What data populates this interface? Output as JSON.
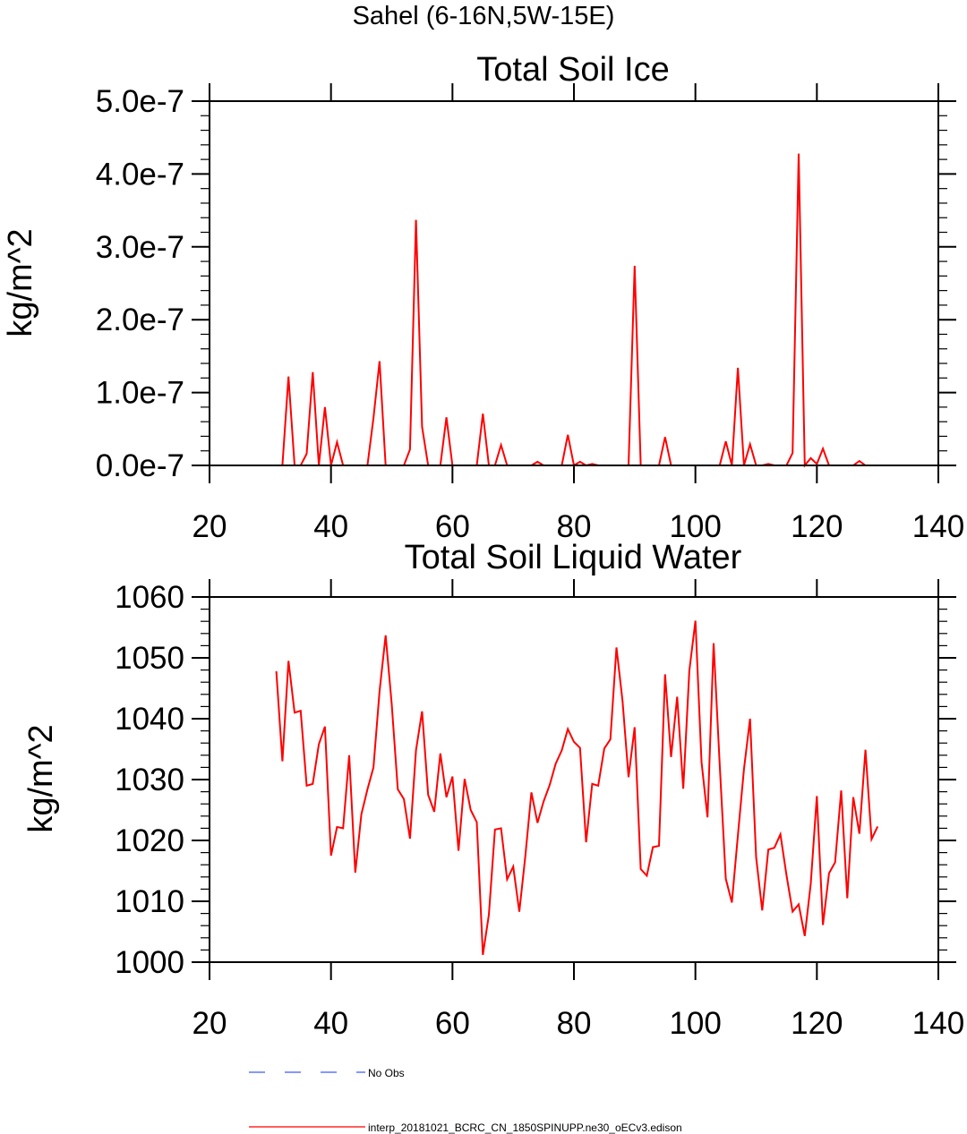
{
  "figure_title": "Sahel (6-16N,5W-15E)",
  "colors": {
    "model_line": "#ff0000",
    "obs_line": "#3d5afe",
    "axis": "#000000"
  },
  "chart_data": [
    {
      "type": "line",
      "title": "Total Soil Ice",
      "xlabel": "",
      "ylabel": "kg/m^2",
      "xlim": [
        20,
        140
      ],
      "ylim": [
        0,
        5e-07
      ],
      "x_ticks": [
        20,
        40,
        60,
        80,
        100,
        120,
        140
      ],
      "x_tick_labels": [
        "20",
        "40",
        "60",
        "80",
        "100",
        "120",
        "140"
      ],
      "y_ticks": [
        0,
        1e-07,
        2e-07,
        3e-07,
        4e-07,
        5e-07
      ],
      "y_tick_labels": [
        "0.0e-7",
        "1.0e-7",
        "2.0e-7",
        "3.0e-7",
        "4.0e-7",
        "5.0e-7"
      ],
      "grid": false,
      "series": [
        {
          "name": "interp_20181021_BCRC_CN_1850SPINUPP.ne30_oECv3.edison",
          "color": "#ff0000",
          "x": [
            31,
            32,
            33,
            34,
            35,
            36,
            37,
            38,
            39,
            40,
            41,
            42,
            43,
            44,
            45,
            46,
            47,
            48,
            49,
            50,
            51,
            52,
            53,
            54,
            55,
            56,
            57,
            58,
            59,
            60,
            61,
            62,
            63,
            64,
            65,
            66,
            67,
            68,
            69,
            70,
            71,
            72,
            73,
            74,
            75,
            76,
            77,
            78,
            79,
            80,
            81,
            82,
            83,
            84,
            85,
            86,
            87,
            88,
            89,
            90,
            91,
            92,
            93,
            94,
            95,
            96,
            97,
            98,
            99,
            100,
            101,
            102,
            103,
            104,
            105,
            106,
            107,
            108,
            109,
            110,
            111,
            112,
            113,
            114,
            115,
            116,
            117,
            118,
            119,
            120,
            121,
            122,
            123,
            124,
            125,
            126,
            127,
            128,
            129,
            130
          ],
          "values": [
            0,
            0,
            1.22e-07,
            0,
            0,
            1.6e-08,
            1.28e-07,
            0,
            8e-08,
            0,
            3.2e-08,
            0,
            0,
            0,
            0,
            0,
            6.5e-08,
            1.43e-07,
            0,
            0,
            0,
            0,
            2.2e-08,
            3.37e-07,
            5.3e-08,
            0,
            0,
            0,
            6.6e-08,
            0,
            0,
            0,
            0,
            0,
            7.1e-08,
            0,
            0,
            2.8e-08,
            0,
            0,
            0,
            0,
            0,
            5e-09,
            0,
            0,
            0,
            0,
            4.2e-08,
            0,
            5e-09,
            0,
            2e-09,
            0,
            0,
            0,
            0,
            0,
            0,
            2.74e-07,
            0,
            0,
            0,
            0,
            3.9e-08,
            0,
            0,
            0,
            0,
            0,
            0,
            0,
            0,
            0,
            3.3e-08,
            0,
            1.34e-07,
            0,
            2.9e-08,
            0,
            0,
            2e-09,
            0,
            0,
            0,
            1.7e-08,
            4.28e-07,
            0,
            1e-08,
            2e-09,
            2.3e-08,
            0,
            0,
            0,
            0,
            0,
            6e-09,
            0,
            0,
            0
          ]
        }
      ]
    },
    {
      "type": "line",
      "title": "Total Soil Liquid Water",
      "xlabel": "",
      "ylabel": "kg/m^2",
      "xlim": [
        20,
        140
      ],
      "ylim": [
        1000,
        1060
      ],
      "x_ticks": [
        20,
        40,
        60,
        80,
        100,
        120,
        140
      ],
      "x_tick_labels": [
        "20",
        "40",
        "60",
        "80",
        "100",
        "120",
        "140"
      ],
      "y_ticks": [
        1000,
        1010,
        1020,
        1030,
        1040,
        1050,
        1060
      ],
      "y_tick_labels": [
        "1000",
        "1010",
        "1020",
        "1030",
        "1040",
        "1050",
        "1060"
      ],
      "grid": false,
      "series": [
        {
          "name": "interp_20181021_BCRC_CN_1850SPINUPP.ne30_oECv3.edison",
          "color": "#ff0000",
          "x": [
            31,
            32,
            33,
            34,
            35,
            36,
            37,
            38,
            39,
            40,
            41,
            42,
            43,
            44,
            45,
            46,
            47,
            48,
            49,
            50,
            51,
            52,
            53,
            54,
            55,
            56,
            57,
            58,
            59,
            60,
            61,
            62,
            63,
            64,
            65,
            66,
            67,
            68,
            69,
            70,
            71,
            72,
            73,
            74,
            75,
            76,
            77,
            78,
            79,
            80,
            81,
            82,
            83,
            84,
            85,
            86,
            87,
            88,
            89,
            90,
            91,
            92,
            93,
            94,
            95,
            96,
            97,
            98,
            99,
            100,
            101,
            102,
            103,
            104,
            105,
            106,
            107,
            108,
            109,
            110,
            111,
            112,
            113,
            114,
            115,
            116,
            117,
            118,
            119,
            120,
            121,
            122,
            123,
            124,
            125,
            126,
            127,
            128,
            129,
            130
          ],
          "values": [
            1047.8,
            1033,
            1049.5,
            1041,
            1041.3,
            1029,
            1029.3,
            1035.8,
            1038.7,
            1017.5,
            1022.2,
            1022,
            1034,
            1014.7,
            1024.3,
            1028.4,
            1032,
            1044.5,
            1053.7,
            1042.4,
            1028.4,
            1026.8,
            1020.3,
            1034.8,
            1041.2,
            1027.5,
            1024.7,
            1034.3,
            1027.1,
            1030.5,
            1018.3,
            1030.1,
            1025,
            1023,
            1001.2,
            1007.8,
            1021.8,
            1022,
            1013.6,
            1015.7,
            1008.3,
            1017.4,
            1027.9,
            1022.9,
            1026.4,
            1029.1,
            1032.6,
            1034.8,
            1038.3,
            1036.2,
            1035.2,
            1019.7,
            1029.3,
            1029,
            1035.1,
            1036.6,
            1051.7,
            1042.9,
            1030.4,
            1038.6,
            1015.3,
            1014.2,
            1018.9,
            1019.1,
            1047.3,
            1033.7,
            1043.6,
            1028.5,
            1047.9,
            1056.1,
            1032.9,
            1023.8,
            1052.4,
            1032.5,
            1013.7,
            1009.8,
            1020.8,
            1031.7,
            1040,
            1017.2,
            1008.5,
            1018.5,
            1018.8,
            1021,
            1014.3,
            1008.3,
            1009.5,
            1004.3,
            1012.9,
            1027.3,
            1006.1,
            1014.6,
            1016.4,
            1028.2,
            1010.5,
            1027.1,
            1021.1,
            1034.9,
            1020.2,
            1022.3
          ]
        }
      ]
    }
  ],
  "legend": [
    {
      "label": "No Obs",
      "style": "dashed",
      "color": "#3d5afe"
    },
    {
      "label": "interp_20181021_BCRC_CN_1850SPINUPP.ne30_oECv3.edison",
      "style": "solid",
      "color": "#ff0000"
    }
  ]
}
